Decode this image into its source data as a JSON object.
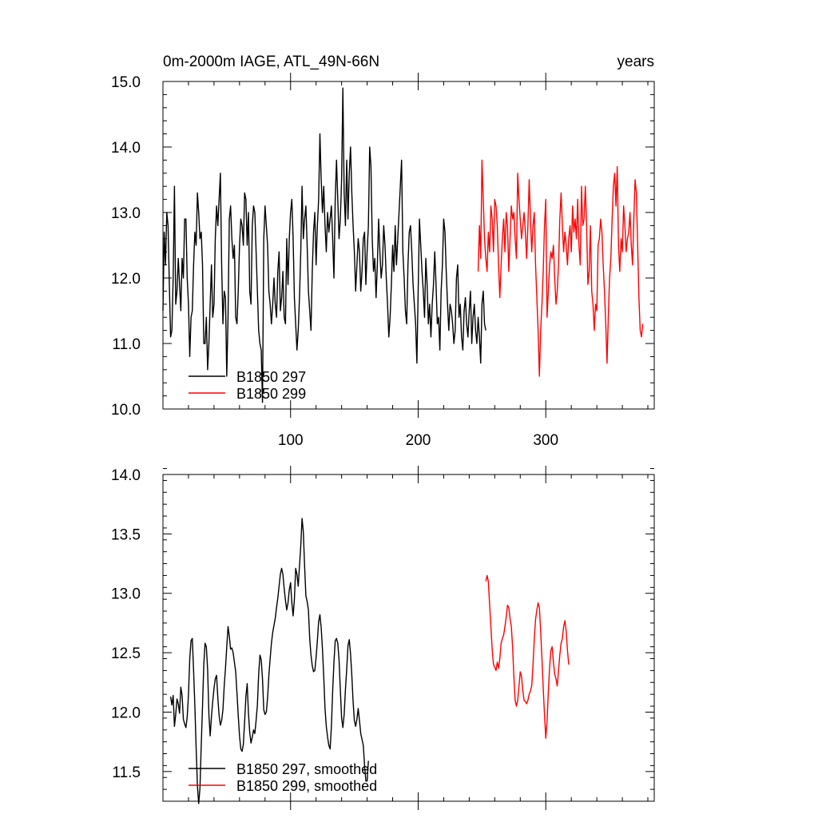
{
  "chart_data": [
    {
      "type": "line",
      "title_left": "0m-2000m IAGE, ATL_49N-66N",
      "title_right": "years",
      "xlim": [
        0,
        385
      ],
      "ylim": [
        10.0,
        15.0
      ],
      "xticks": [
        100,
        200,
        300
      ],
      "yticks": [
        "10.0",
        "11.0",
        "12.0",
        "13.0",
        "14.0",
        "15.0"
      ],
      "legend_position": "bottom-left",
      "series": [
        {
          "name": "B1850 297",
          "color": "#000000",
          "x0": 0,
          "values": [
            11.5,
            12.7,
            12.2,
            13.0,
            12.8,
            11.9,
            11.1,
            11.2,
            12.0,
            13.4,
            11.6,
            11.8,
            12.3,
            11.9,
            11.5,
            12.3,
            12.0,
            12.9,
            12.9,
            12.0,
            11.6,
            10.8,
            11.4,
            11.5,
            12.2,
            12.7,
            12.5,
            13.3,
            13.0,
            12.6,
            12.7,
            12.2,
            11.0,
            11.0,
            11.4,
            10.6,
            11.0,
            11.6,
            12.2,
            11.4,
            11.6,
            12.6,
            13.1,
            12.8,
            13.2,
            13.6,
            12.2,
            11.3,
            11.8,
            11.7,
            10.5,
            11.4,
            12.9,
            13.1,
            12.6,
            12.3,
            12.5,
            11.4,
            11.3,
            11.8,
            12.5,
            12.9,
            12.8,
            12.5,
            13.3,
            13.2,
            12.5,
            13.0,
            11.8,
            11.6,
            12.8,
            13.1,
            13.0,
            12.4,
            11.8,
            11.2,
            11.0,
            10.9,
            10.1,
            12.6,
            13.1,
            12.8,
            12.5,
            11.8,
            11.6,
            11.3,
            11.6,
            12.0,
            11.6,
            11.4,
            12.1,
            12.4,
            11.5,
            11.7,
            12.1,
            11.4,
            11.3,
            12.6,
            11.9,
            12.6,
            13.0,
            13.2,
            12.6,
            11.7,
            11.3,
            10.9,
            11.2,
            11.7,
            12.4,
            13.4,
            12.6,
            12.9,
            13.1,
            12.5,
            11.8,
            11.5,
            11.2,
            12.1,
            12.7,
            13.0,
            12.2,
            12.8,
            13.2,
            14.2,
            13.5,
            13.0,
            13.4,
            12.8,
            12.4,
            13.0,
            12.7,
            12.9,
            13.1,
            12.6,
            12.0,
            13.2,
            13.8,
            13.2,
            12.6,
            12.9,
            13.5,
            14.9,
            13.3,
            12.8,
            13.8,
            12.9,
            13.6,
            14.0,
            13.3,
            12.8,
            12.4,
            11.8,
            12.2,
            12.6,
            12.4,
            11.8,
            12.1,
            12.6,
            12.7,
            11.9,
            12.4,
            12.8,
            14.0,
            13.7,
            12.6,
            12.1,
            12.3,
            11.7,
            12.2,
            12.9,
            12.4,
            12.0,
            12.2,
            12.8,
            12.5,
            12.0,
            11.6,
            11.1,
            11.4,
            11.9,
            12.5,
            12.1,
            12.8,
            12.2,
            12.6,
            13.0,
            13.4,
            13.8,
            12.4,
            12.0,
            11.5,
            11.3,
            12.2,
            12.7,
            12.8,
            12.4,
            11.9,
            11.6,
            11.3,
            10.7,
            11.8,
            12.9,
            12.5,
            12.1,
            11.8,
            11.4,
            12.3,
            11.9,
            11.3,
            11.6,
            11.1,
            11.6,
            11.9,
            12.4,
            11.9,
            11.3,
            11.4,
            10.9,
            11.8,
            12.2,
            12.9,
            12.7,
            12.1,
            11.6,
            11.2,
            11.6,
            11.5,
            11.3,
            11.0,
            11.2,
            12.0,
            12.2,
            11.4,
            11.6,
            11.1,
            10.9,
            11.5,
            11.7,
            11.3,
            11.1,
            11.5,
            11.8,
            11.0,
            11.4,
            11.6,
            11.2,
            11.0,
            11.4,
            11.1,
            10.7,
            11.6,
            11.8,
            11.3,
            11.2
          ]
        },
        {
          "name": "B1850 299",
          "color": "#ff0000",
          "x0": 247,
          "values": [
            12.1,
            12.8,
            12.3,
            13.8,
            13.2,
            12.6,
            12.3,
            12.1,
            12.7,
            12.4,
            13.1,
            12.9,
            12.4,
            13.2,
            13.1,
            12.8,
            12.2,
            11.7,
            12.2,
            12.6,
            12.9,
            12.4,
            13.0,
            12.8,
            12.1,
            12.6,
            13.1,
            12.9,
            13.0,
            12.6,
            12.3,
            13.6,
            13.2,
            12.9,
            12.6,
            12.8,
            13.0,
            12.7,
            12.3,
            12.8,
            13.5,
            12.9,
            12.4,
            12.8,
            13.0,
            12.2,
            11.7,
            11.2,
            10.5,
            11.2,
            11.6,
            12.1,
            12.8,
            13.2,
            11.4,
            11.8,
            12.2,
            12.4,
            12.3,
            12.5,
            12.0,
            11.6,
            11.8,
            12.2,
            12.9,
            13.3,
            12.8,
            12.4,
            12.7,
            12.5,
            12.2,
            12.6,
            12.8,
            12.4,
            13.1,
            12.7,
            12.9,
            12.6,
            13.2,
            12.5,
            12.2,
            13.4,
            12.8,
            12.9,
            13.4,
            12.8,
            11.9,
            12.1,
            12.8,
            11.8,
            11.6,
            11.2,
            11.6,
            11.5,
            12.5,
            12.6,
            12.9,
            12.7,
            12.2,
            11.8,
            11.3,
            10.7,
            11.4,
            12.0,
            12.3,
            12.9,
            13.4,
            13.6,
            13.1,
            13.7,
            12.5,
            12.1,
            12.6,
            12.4,
            13.1,
            12.8,
            12.4,
            12.6,
            12.7,
            13.0,
            12.5,
            12.2,
            12.9,
            13.5,
            13.3,
            12.5,
            11.7,
            11.2,
            11.1,
            11.3
          ]
        }
      ]
    },
    {
      "type": "line",
      "xlim": [
        0,
        385
      ],
      "ylim": [
        11.25,
        14.0
      ],
      "yticks": [
        "11.5",
        "12.0",
        "12.5",
        "13.0",
        "13.5",
        "14.0"
      ],
      "legend_position": "bottom-left",
      "series": [
        {
          "name": "B1850 297, smoothed",
          "color": "#000000",
          "x0": 6,
          "values": [
            12.13,
            12.06,
            12.14,
            11.88,
            11.98,
            12.11,
            12.07,
            11.99,
            12.21,
            12.14,
            11.94,
            11.9,
            11.87,
            11.96,
            12.15,
            12.45,
            12.6,
            12.62,
            12.35,
            12.05,
            11.7,
            11.38,
            11.23,
            11.36,
            11.72,
            12.05,
            12.4,
            12.58,
            12.55,
            12.36,
            11.98,
            11.8,
            11.96,
            12.09,
            12.2,
            12.28,
            12.31,
            12.12,
            11.97,
            11.89,
            11.93,
            12.02,
            12.22,
            12.37,
            12.55,
            12.72,
            12.64,
            12.53,
            12.54,
            12.5,
            12.42,
            12.34,
            12.16,
            11.97,
            11.8,
            11.69,
            11.67,
            11.73,
            11.92,
            12.13,
            12.24,
            11.99,
            11.83,
            11.74,
            11.79,
            11.85,
            11.82,
            11.93,
            12.06,
            12.32,
            12.48,
            12.44,
            12.28,
            12.02,
            11.98,
            12.0,
            12.12,
            12.31,
            12.45,
            12.58,
            12.67,
            12.73,
            12.79,
            12.88,
            12.96,
            13.06,
            13.16,
            13.21,
            13.16,
            13.04,
            12.94,
            12.86,
            12.92,
            13.03,
            13.09,
            12.92,
            12.81,
            12.95,
            13.21,
            13.16,
            13.06,
            13.23,
            13.4,
            13.63,
            13.52,
            13.23,
            12.98,
            12.93,
            12.86,
            12.62,
            12.48,
            12.39,
            12.34,
            12.35,
            12.46,
            12.6,
            12.76,
            12.82,
            12.71,
            12.53,
            12.3,
            12.03,
            11.88,
            11.79,
            11.72,
            11.69,
            11.88,
            12.18,
            12.42,
            12.6,
            12.62,
            12.58,
            12.44,
            12.19,
            11.95,
            11.87,
            11.98,
            12.19,
            12.36,
            12.56,
            12.61,
            12.49,
            12.31,
            12.09,
            11.93,
            11.88,
            11.94,
            12.03,
            11.93,
            11.82,
            11.77,
            11.72,
            11.55,
            11.42,
            11.42,
            11.59
          ]
        },
        {
          "name": "B1850 299, smoothed",
          "color": "#ff0000",
          "x0": 253,
          "values": [
            13.1,
            13.15,
            13.1,
            12.9,
            12.72,
            12.53,
            12.4,
            12.38,
            12.35,
            12.42,
            12.37,
            12.45,
            12.58,
            12.62,
            12.65,
            12.72,
            12.8,
            12.9,
            12.88,
            12.79,
            12.72,
            12.55,
            12.3,
            12.1,
            12.05,
            12.1,
            12.22,
            12.34,
            12.3,
            12.18,
            12.1,
            12.09,
            12.07,
            12.1,
            12.15,
            12.18,
            12.22,
            12.4,
            12.62,
            12.78,
            12.86,
            12.92,
            12.88,
            12.68,
            12.45,
            12.2,
            11.98,
            11.78,
            11.92,
            12.17,
            12.38,
            12.52,
            12.55,
            12.42,
            12.32,
            12.28,
            12.22,
            12.35,
            12.48,
            12.58,
            12.62,
            12.72,
            12.77,
            12.68,
            12.52,
            12.4
          ]
        }
      ]
    }
  ]
}
